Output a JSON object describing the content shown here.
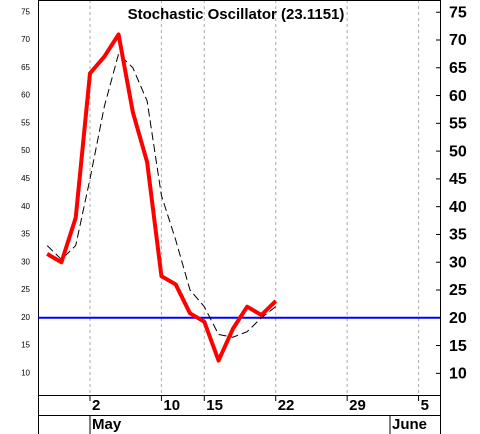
{
  "chart_data": {
    "type": "line",
    "title": "Stochastic Oscillator (23.1151)",
    "x": [
      -3,
      -2,
      -1,
      0,
      1,
      2,
      3,
      4,
      5,
      6,
      7,
      8,
      9,
      10,
      11,
      12,
      13
    ],
    "series": [
      {
        "color": "#ff0000",
        "dashed": false,
        "width": 4,
        "values": [
          31.5,
          30,
          38,
          64,
          67,
          71,
          57,
          48,
          27.5,
          26,
          20.8,
          19.3,
          12.3,
          18,
          22,
          20.5,
          23
        ]
      },
      {
        "color": "#000000",
        "dashed": true,
        "width": 1,
        "values": [
          33,
          30.5,
          33,
          45,
          58,
          67.5,
          65,
          59,
          42,
          34,
          25,
          22,
          17,
          16.5,
          17.5,
          20,
          22
        ]
      }
    ],
    "reference_line": {
      "value": 20,
      "color": "#0000ff"
    },
    "xlim": [
      -3.64,
      24.5
    ],
    "xticks": [
      {
        "value": 0,
        "label": "2"
      },
      {
        "value": 5,
        "label": "10"
      },
      {
        "value": 8,
        "label": "15"
      },
      {
        "value": 13,
        "label": "22"
      },
      {
        "value": 18,
        "label": "29"
      },
      {
        "value": 23,
        "label": "5"
      }
    ],
    "months": [
      {
        "value": 0,
        "label": "May"
      },
      {
        "value": 21,
        "label": "June"
      }
    ],
    "ylim": [
      6.1,
      77.2
    ],
    "yticks": [
      10,
      15,
      20,
      25,
      30,
      35,
      40,
      45,
      50,
      55,
      60,
      65,
      70,
      75
    ],
    "grid": true
  }
}
